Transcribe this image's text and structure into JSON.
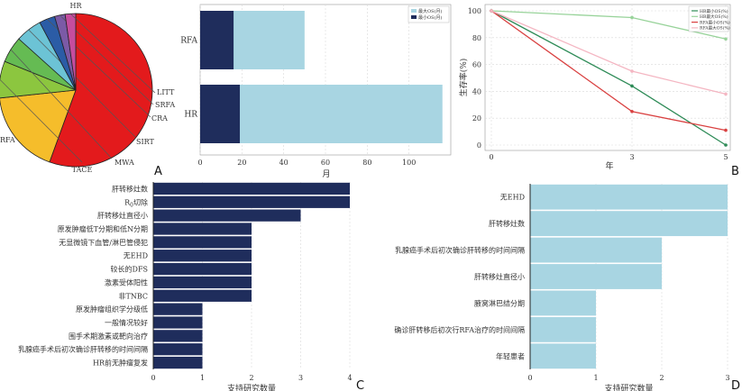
{
  "colors": {
    "navy": "#1f2d5c",
    "lightblue": "#a8d5e2",
    "pie": [
      "#e31a1c",
      "#f5bd2b",
      "#8cc63f",
      "#65bb53",
      "#6cc3d5",
      "#2b5ca6",
      "#7b5aa6",
      "#c54d9e"
    ],
    "survival": [
      "#2e8b57",
      "#98d39a",
      "#d94040",
      "#f4b6c2"
    ]
  },
  "chart_data": [
    {
      "type": "pie",
      "letter": "A",
      "categories": [
        "HR",
        "RFA",
        "TACE",
        "MWA",
        "SIRT",
        "CRA",
        "SRFA",
        "LITT"
      ],
      "values": [
        50,
        16,
        7,
        5,
        5,
        3,
        2,
        2
      ]
    },
    {
      "type": "bar",
      "orientation": "horizontal",
      "letter": "",
      "categories": [
        "RFA",
        "HR"
      ],
      "series": [
        {
          "name": "最大OS(月)",
          "values": [
            50,
            116
          ]
        },
        {
          "name": "最小OS(月)",
          "values": [
            16,
            19
          ]
        }
      ],
      "xlabel": "月",
      "xlim": [
        0,
        120
      ],
      "xticks": [
        0,
        20,
        40,
        60,
        80,
        100
      ]
    },
    {
      "type": "line",
      "letter": "B",
      "x": [
        0,
        3,
        5
      ],
      "xticks": [
        0,
        3,
        5
      ],
      "xlabel": "年",
      "ylabel": "生存率(%)",
      "ylim": [
        0,
        100
      ],
      "yticks": [
        0,
        20,
        40,
        60,
        80,
        100
      ],
      "series": [
        {
          "name": "HR最小OS(%)",
          "values": [
            100,
            44,
            0
          ]
        },
        {
          "name": "HR最大OS(%)",
          "values": [
            100,
            95,
            79
          ]
        },
        {
          "name": "RFA最小OS(%)",
          "values": [
            100,
            25,
            11
          ]
        },
        {
          "name": "RFA最大OS(%)",
          "values": [
            100,
            55,
            38
          ]
        }
      ]
    },
    {
      "type": "bar",
      "orientation": "horizontal",
      "letter": "C",
      "categories": [
        "肝转移灶数",
        "R0切除",
        "肝转移灶直径小",
        "原发肿瘤低T分期和低N分期",
        "无显微镜下血管/淋巴管侵犯",
        "无EHD",
        "较长的DFS",
        "激素受体阳性",
        "非TNBC",
        "原发肿瘤组织学分级低",
        "一般情况较好",
        "围手术期激素或靶向治疗",
        "乳腺癌手术后初次确诊肝转移的时间间隔",
        "HR前无肿瘤复发"
      ],
      "values": [
        4,
        4,
        3,
        2,
        2,
        2,
        2,
        2,
        2,
        1,
        1,
        1,
        1,
        1
      ],
      "xlabel": "支持研究数量",
      "xlim": [
        0,
        4
      ],
      "xticks": [
        0,
        1,
        2,
        3,
        4
      ]
    },
    {
      "type": "bar",
      "orientation": "horizontal",
      "letter": "D",
      "categories": [
        "无EHD",
        "肝转移灶数",
        "乳腺癌手术后初次确诊肝转移的时间间隔",
        "肝转移灶直径小",
        "腋窝淋巴结分期",
        "确诊肝转移后初次行RFA治疗的时间间隔",
        "年轻患者"
      ],
      "values": [
        3,
        3,
        2,
        2,
        1,
        1,
        1
      ],
      "xlabel": "支持研究数量",
      "xlim": [
        0,
        3
      ],
      "xticks": [
        0,
        1,
        2,
        3
      ]
    }
  ]
}
